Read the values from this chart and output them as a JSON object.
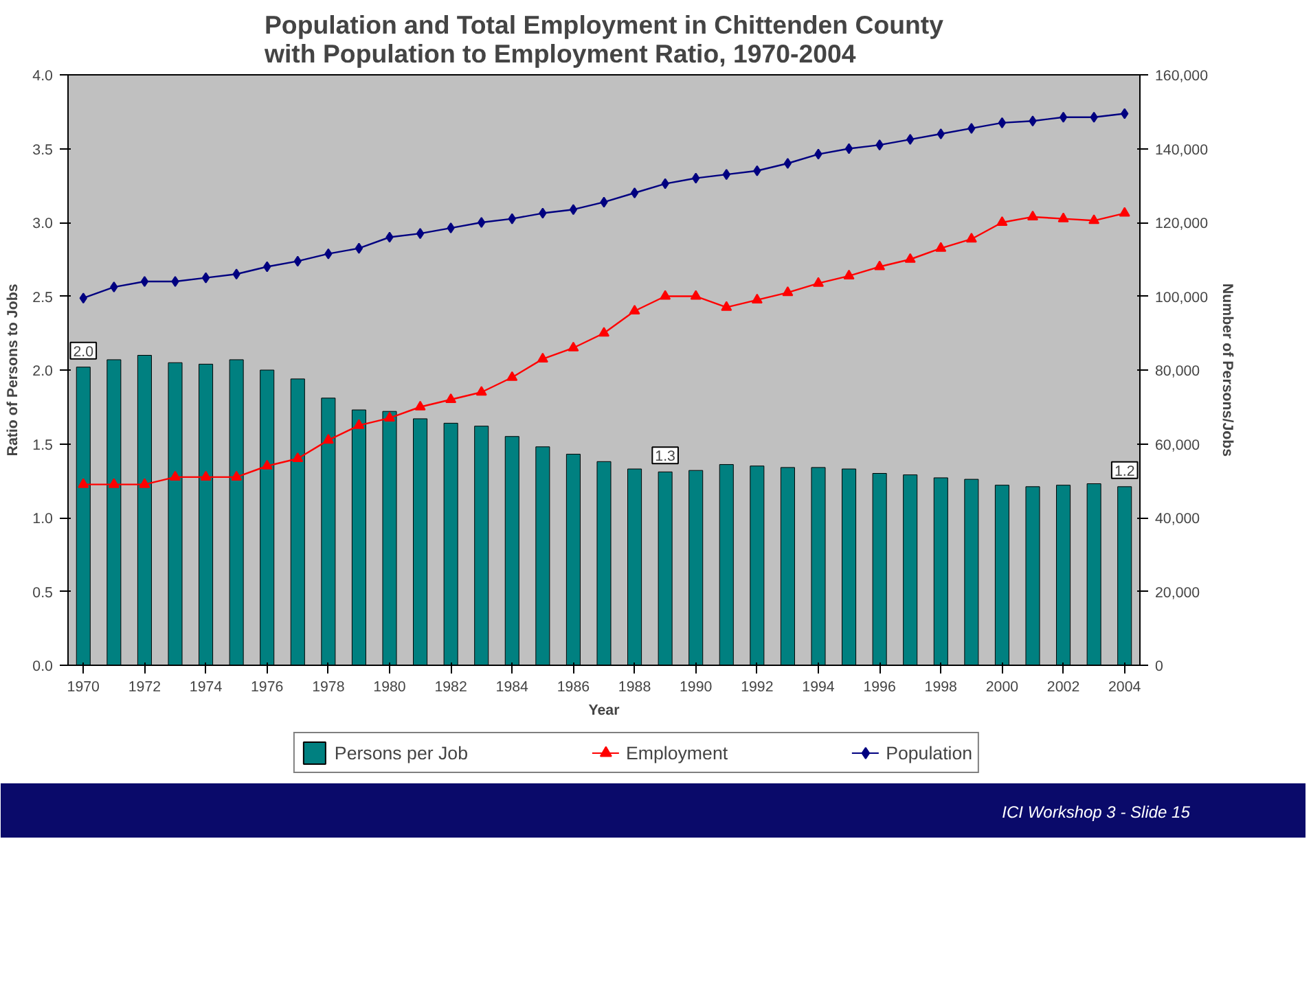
{
  "chart_data": {
    "type": "bar",
    "title": "Population and Total Employment in Chittenden County\nwith Population to Employment Ratio, 1970-2004",
    "xlabel": "Year",
    "ylabel": "Ratio of Persons to Jobs",
    "y2label": "Number of Persons/Jobs",
    "x": [
      1970,
      1971,
      1972,
      1973,
      1974,
      1975,
      1976,
      1977,
      1978,
      1979,
      1980,
      1981,
      1982,
      1983,
      1984,
      1985,
      1986,
      1987,
      1988,
      1989,
      1990,
      1991,
      1992,
      1993,
      1994,
      1995,
      1996,
      1997,
      1998,
      1999,
      2000,
      2001,
      2002,
      2003,
      2004
    ],
    "series": [
      {
        "name": "Persons per Job",
        "color": "#008080",
        "values": [
          2.02,
          2.07,
          2.1,
          2.05,
          2.04,
          2.07,
          2.0,
          1.94,
          1.81,
          1.73,
          1.72,
          1.67,
          1.64,
          1.62,
          1.55,
          1.48,
          1.43,
          1.38,
          1.33,
          1.31,
          1.32,
          1.36,
          1.35,
          1.34,
          1.34,
          1.33,
          1.3,
          1.29,
          1.27,
          1.26,
          1.22,
          1.21,
          1.22,
          1.23,
          1.21
        ],
        "value_labels": [
          "2.0",
          null,
          null,
          null,
          null,
          null,
          null,
          null,
          null,
          null,
          null,
          null,
          null,
          null,
          null,
          null,
          null,
          null,
          null,
          "1.3",
          null,
          null,
          null,
          null,
          null,
          null,
          null,
          null,
          null,
          null,
          null,
          null,
          null,
          null,
          "1.2"
        ]
      },
      {
        "name": "Employment",
        "type": "line",
        "axis": "y2",
        "color": "#ff0000",
        "marker": "triangle",
        "values": [
          49000,
          49000,
          49000,
          51000,
          51000,
          51000,
          54000,
          56000,
          61000,
          65000,
          67000,
          70000,
          72000,
          74000,
          78000,
          83000,
          86000,
          90000,
          96000,
          100000,
          100000,
          97000,
          99000,
          101000,
          103500,
          105500,
          108000,
          110000,
          113000,
          115500,
          120000,
          121500,
          121000,
          120500,
          122500
        ]
      },
      {
        "name": "Population",
        "type": "line",
        "axis": "y2",
        "color": "#000080",
        "marker": "diamond",
        "values": [
          99500,
          102500,
          104000,
          104000,
          105000,
          106000,
          108000,
          109500,
          111500,
          113000,
          116000,
          117000,
          118500,
          120000,
          121000,
          122500,
          123500,
          125500,
          128000,
          130500,
          132000,
          133000,
          134000,
          136000,
          138500,
          140000,
          141000,
          142500,
          144000,
          145500,
          147000,
          147500,
          148500,
          148500,
          149500
        ]
      }
    ],
    "xlim": [
      1969.5,
      2004.5
    ],
    "xticks": [
      1970,
      1972,
      1974,
      1976,
      1978,
      1980,
      1982,
      1984,
      1986,
      1988,
      1990,
      1992,
      1994,
      1996,
      1998,
      2000,
      2002,
      2004
    ],
    "ylim": [
      0,
      4
    ],
    "yticks": [
      {
        "value": 0,
        "label": "0.0"
      },
      {
        "value": 0.5,
        "label": "0.5"
      },
      {
        "value": 1,
        "label": "1.0"
      },
      {
        "value": 1.5,
        "label": "1.5"
      },
      {
        "value": 2,
        "label": "2.0"
      },
      {
        "value": 2.5,
        "label": "2.5"
      },
      {
        "value": 3,
        "label": "3.0"
      },
      {
        "value": 3.5,
        "label": "3.5"
      },
      {
        "value": 4,
        "label": "4.0"
      }
    ],
    "y2lim": [
      0,
      160000
    ],
    "y2ticks": [
      0,
      {
        "value": 20000,
        "label": "20,000"
      },
      {
        "value": 40000,
        "label": "40,000"
      },
      {
        "value": 60000,
        "label": "60,000"
      },
      {
        "value": 80000,
        "label": "80,000"
      },
      {
        "value": 100000,
        "label": "100,000"
      },
      {
        "value": 120000,
        "label": "120,000"
      },
      {
        "value": 140000,
        "label": "140,000"
      },
      {
        "value": 160000,
        "label": "160,000"
      }
    ],
    "grid": false,
    "legend": "bottom",
    "line_style": "solid",
    "annotations": [
      "ICI Workshop 3 -  Slide 15"
    ]
  }
}
